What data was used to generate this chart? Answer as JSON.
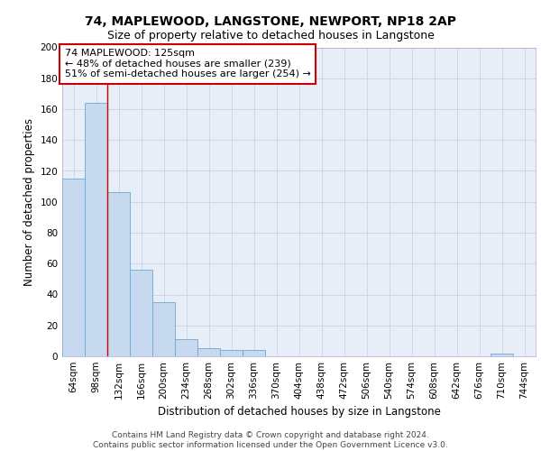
{
  "title1": "74, MAPLEWOOD, LANGSTONE, NEWPORT, NP18 2AP",
  "title2": "Size of property relative to detached houses in Langstone",
  "xlabel": "Distribution of detached houses by size in Langstone",
  "ylabel": "Number of detached properties",
  "bar_color": "#c6d9ee",
  "bar_edge_color": "#6aaad4",
  "categories": [
    "64sqm",
    "98sqm",
    "132sqm",
    "166sqm",
    "200sqm",
    "234sqm",
    "268sqm",
    "302sqm",
    "336sqm",
    "370sqm",
    "404sqm",
    "438sqm",
    "472sqm",
    "506sqm",
    "540sqm",
    "574sqm",
    "608sqm",
    "642sqm",
    "676sqm",
    "710sqm",
    "744sqm"
  ],
  "values": [
    115,
    164,
    106,
    56,
    35,
    11,
    5,
    4,
    4,
    0,
    0,
    0,
    0,
    0,
    0,
    0,
    0,
    0,
    0,
    2,
    0
  ],
  "vline_x": 1.5,
  "vline_color": "#cc0000",
  "annotation_line1": "74 MAPLEWOOD: 125sqm",
  "annotation_line2": "← 48% of detached houses are smaller (239)",
  "annotation_line3": "51% of semi-detached houses are larger (254) →",
  "annotation_box_color": "#ffffff",
  "annotation_border_color": "#cc0000",
  "ylim": [
    0,
    200
  ],
  "yticks": [
    0,
    20,
    40,
    60,
    80,
    100,
    120,
    140,
    160,
    180,
    200
  ],
  "grid_color": "#ccd6e8",
  "background_color": "#e8eef8",
  "footer_text": "Contains HM Land Registry data © Crown copyright and database right 2024.\nContains public sector information licensed under the Open Government Licence v3.0.",
  "title1_fontsize": 10,
  "title2_fontsize": 9,
  "xlabel_fontsize": 8.5,
  "ylabel_fontsize": 8.5,
  "tick_fontsize": 7.5,
  "annotation_fontsize": 8,
  "footer_fontsize": 6.5
}
